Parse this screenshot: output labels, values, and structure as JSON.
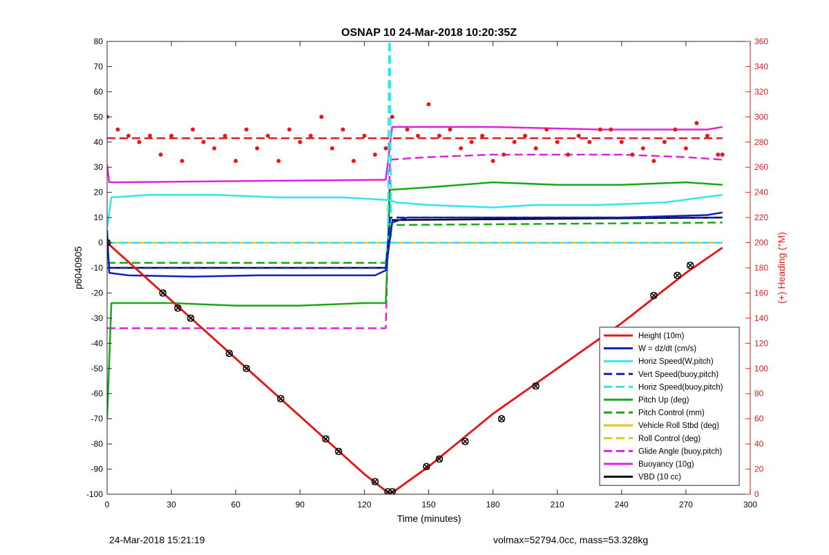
{
  "footer": {
    "left": "24-Mar-2018 15:21:19",
    "right": "volmax=52794.0cc, mass=53.328kg"
  },
  "chart_data": {
    "type": "line",
    "title": "OSNAP 10 24-Mar-2018 10:20:35Z",
    "xlabel": "Time (minutes)",
    "ylabel": "p6040905",
    "y2label": "(+) Heading (°M)",
    "xlim": [
      0,
      300
    ],
    "ylim": [
      -100,
      80
    ],
    "y2lim": [
      0,
      360
    ],
    "xticks": [
      0,
      30,
      60,
      90,
      120,
      150,
      180,
      210,
      240,
      270,
      300
    ],
    "yticks": [
      -100,
      -90,
      -80,
      -70,
      -60,
      -50,
      -40,
      -30,
      -20,
      -10,
      0,
      10,
      20,
      30,
      40,
      50,
      60,
      70,
      80
    ],
    "y2ticks": [
      0,
      20,
      40,
      60,
      80,
      100,
      120,
      140,
      160,
      180,
      200,
      220,
      240,
      260,
      280,
      300,
      320,
      340,
      360
    ],
    "grid": false,
    "legend_position": "bottom-right",
    "colors": {
      "height": "#e31a1c",
      "w": "#0a1fbf",
      "horiz": "#2ee6ee",
      "pitch": "#14a814",
      "roll": "#e6c514",
      "glide": "#e020e0",
      "buoy": "#e020e0",
      "vbd": "#000000",
      "heading": "#e31a1c"
    },
    "series": [
      {
        "name": "Height (10m)",
        "color": "#e31a1c",
        "style": "solid",
        "x": [
          0,
          30,
          60,
          90,
          120,
          132,
          150,
          180,
          210,
          240,
          270,
          287
        ],
        "y": [
          0,
          -23,
          -46,
          -69,
          -92,
          -100,
          -89,
          -68,
          -50,
          -32,
          -12,
          -2
        ]
      },
      {
        "name": "W = dz/dt (cm/s)",
        "color": "#0a1fbf",
        "style": "solid",
        "x": [
          0,
          1,
          10,
          40,
          70,
          100,
          125,
          130,
          133,
          140,
          160,
          200,
          240,
          280,
          287
        ],
        "y": [
          5,
          -12,
          -13,
          -13.5,
          -13,
          -13,
          -13,
          -11,
          8,
          10,
          10,
          10,
          10,
          11,
          12
        ]
      },
      {
        "name": "Horiz Speed(W,pitch)",
        "color": "#2ee6ee",
        "style": "solid",
        "x": [
          0,
          2,
          20,
          50,
          80,
          110,
          130,
          131,
          135,
          150,
          180,
          200,
          230,
          260,
          287
        ],
        "y": [
          6,
          18,
          19,
          19,
          18,
          18,
          17,
          17,
          16,
          15,
          14,
          15,
          15,
          16,
          19
        ]
      },
      {
        "name": "Vert Speed(buoy,pitch)",
        "color": "#0a1fbf",
        "style": "dash",
        "x": [
          0,
          130,
          132,
          287
        ],
        "y": [
          -10,
          -10,
          10,
          10
        ]
      },
      {
        "name": "Horiz Speed(buoy,pitch)",
        "color": "#2ee6ee",
        "style": "dash",
        "x": [
          0,
          131,
          131.5,
          132,
          132.5,
          287
        ],
        "y": [
          0,
          0,
          80,
          80,
          0,
          0
        ]
      },
      {
        "name": "Pitch Up (deg)",
        "color": "#14a814",
        "style": "solid",
        "x": [
          0,
          2,
          30,
          60,
          90,
          120,
          130,
          132,
          150,
          180,
          210,
          240,
          270,
          287
        ],
        "y": [
          -70,
          -24,
          -24,
          -25,
          -25,
          -24,
          -24,
          21,
          22,
          24,
          23,
          23,
          24,
          23
        ]
      },
      {
        "name": "Pitch Control (mm)",
        "color": "#14a814",
        "style": "dash",
        "x": [
          0,
          130,
          132,
          287
        ],
        "y": [
          -8,
          -8,
          7,
          8
        ]
      },
      {
        "name": "Vehicle Roll Stbd (deg)",
        "color": "#e6c514",
        "style": "solid",
        "x": [
          0,
          30,
          60,
          90,
          120,
          150,
          180,
          210,
          240,
          270,
          287
        ],
        "y": [
          0,
          0,
          0,
          0,
          0,
          0,
          0,
          0,
          0,
          0,
          0
        ]
      },
      {
        "name": "Roll Control (deg)",
        "color": "#e6c514",
        "style": "dash",
        "x": [
          0,
          287
        ],
        "y": [
          0,
          0
        ]
      },
      {
        "name": "Glide Angle (buoy,pitch)",
        "color": "#e020e0",
        "style": "dash",
        "x": [
          0,
          30,
          60,
          90,
          120,
          130,
          132,
          150,
          180,
          210,
          240,
          270,
          287
        ],
        "y": [
          -34,
          -34,
          -34,
          -34,
          -34,
          -34,
          33,
          34,
          35,
          35,
          35,
          34,
          33
        ]
      },
      {
        "name": "Buoyancy (10g)",
        "color": "#e020e0",
        "style": "solid",
        "x": [
          0,
          1,
          130,
          133,
          180,
          230,
          280,
          287
        ],
        "y": [
          31,
          24,
          25,
          46,
          46,
          45,
          45,
          46
        ]
      },
      {
        "name": "VBD (10 cc)",
        "color": "#000000",
        "style": "solid",
        "x": [
          0,
          1,
          130,
          133,
          287
        ],
        "y": [
          0,
          -10,
          -10,
          9,
          10
        ]
      }
    ],
    "heading_series": {
      "axis": "right",
      "color": "#e31a1c",
      "x": [
        0,
        5,
        10,
        15,
        20,
        25,
        30,
        35,
        40,
        45,
        50,
        55,
        60,
        65,
        70,
        75,
        80,
        85,
        90,
        95,
        100,
        105,
        110,
        115,
        120,
        125,
        130,
        133,
        140,
        145,
        150,
        155,
        160,
        165,
        170,
        175,
        180,
        185,
        190,
        195,
        200,
        205,
        210,
        215,
        220,
        225,
        230,
        235,
        240,
        245,
        250,
        255,
        260,
        265,
        270,
        275,
        280,
        285,
        287
      ],
      "y": [
        300,
        290,
        285,
        280,
        285,
        270,
        285,
        265,
        290,
        280,
        275,
        285,
        265,
        290,
        275,
        285,
        265,
        290,
        280,
        285,
        300,
        275,
        290,
        265,
        285,
        270,
        275,
        300,
        290,
        285,
        310,
        285,
        290,
        275,
        280,
        285,
        265,
        270,
        280,
        285,
        275,
        290,
        280,
        270,
        285,
        280,
        290,
        290,
        280,
        270,
        275,
        265,
        280,
        290,
        275,
        295,
        285,
        270,
        270
      ]
    },
    "heading_mean": {
      "axis": "right",
      "color": "#e31a1c",
      "style": "dash",
      "x": [
        0,
        287
      ],
      "y": [
        283,
        283
      ]
    },
    "markers": {
      "style": "circle-x",
      "color": "#000000",
      "x": [
        0,
        26,
        33,
        39,
        57,
        65,
        81,
        102,
        108,
        125,
        131,
        133,
        149,
        155,
        167,
        184,
        200,
        255,
        266,
        272
      ],
      "y": [
        0,
        -20,
        -26,
        -30,
        -44,
        -50,
        -62,
        -78,
        -83,
        -95,
        -99,
        -99,
        -89,
        -86,
        -79,
        -70,
        -57,
        -21,
        -13,
        -9
      ]
    }
  }
}
